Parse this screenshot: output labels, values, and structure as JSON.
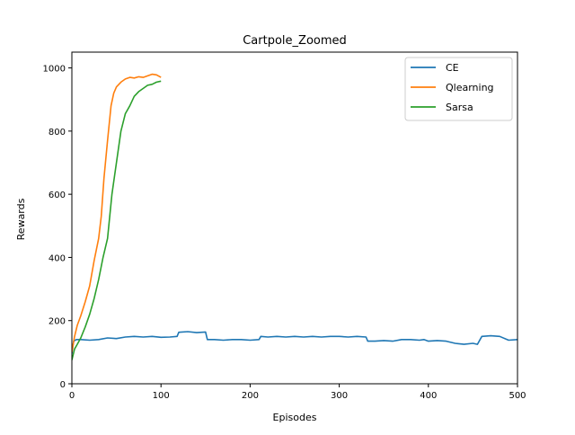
{
  "chart_data": {
    "type": "line",
    "title": "Cartpole_Zoomed",
    "xlabel": "Episodes",
    "ylabel": "Rewards",
    "xlim": [
      0,
      500
    ],
    "ylim": [
      0,
      1050
    ],
    "xticks": [
      0,
      100,
      200,
      300,
      400,
      500
    ],
    "yticks": [
      0,
      200,
      400,
      600,
      800,
      1000
    ],
    "grid": false,
    "legend_position": "top-right",
    "series": [
      {
        "name": "CE",
        "color": "#1f77b4",
        "x": [
          0,
          2,
          5,
          10,
          20,
          30,
          40,
          50,
          60,
          70,
          80,
          90,
          100,
          110,
          118,
          120,
          130,
          140,
          150,
          152,
          160,
          170,
          180,
          190,
          200,
          210,
          212,
          220,
          230,
          240,
          250,
          260,
          270,
          280,
          290,
          300,
          310,
          320,
          330,
          332,
          340,
          350,
          360,
          370,
          380,
          390,
          395,
          400,
          410,
          420,
          430,
          440,
          450,
          455,
          460,
          470,
          480,
          490,
          500
        ],
        "y": [
          95,
          135,
          140,
          140,
          138,
          140,
          145,
          143,
          148,
          150,
          148,
          150,
          147,
          148,
          150,
          163,
          165,
          162,
          164,
          140,
          140,
          138,
          140,
          140,
          138,
          140,
          150,
          148,
          150,
          148,
          150,
          148,
          150,
          148,
          150,
          150,
          148,
          150,
          148,
          135,
          135,
          137,
          135,
          140,
          140,
          138,
          140,
          135,
          137,
          135,
          128,
          125,
          128,
          125,
          150,
          152,
          150,
          138,
          140
        ]
      },
      {
        "name": "Qlearning",
        "color": "#ff7f0e",
        "x": [
          0,
          3,
          6,
          10,
          15,
          20,
          25,
          30,
          33,
          36,
          40,
          44,
          47,
          50,
          55,
          60,
          65,
          70,
          75,
          80,
          85,
          90,
          95,
          100
        ],
        "y": [
          100,
          150,
          185,
          215,
          260,
          310,
          390,
          460,
          530,
          650,
          770,
          880,
          920,
          940,
          955,
          965,
          970,
          968,
          972,
          970,
          975,
          980,
          978,
          970
        ]
      },
      {
        "name": "Sarsa",
        "color": "#2ca02c",
        "x": [
          0,
          3,
          6,
          10,
          15,
          20,
          25,
          30,
          35,
          40,
          45,
          50,
          55,
          60,
          65,
          70,
          75,
          80,
          85,
          90,
          95,
          100
        ],
        "y": [
          75,
          110,
          125,
          145,
          180,
          220,
          270,
          330,
          400,
          460,
          600,
          700,
          800,
          855,
          880,
          910,
          925,
          935,
          945,
          948,
          955,
          958
        ]
      }
    ]
  }
}
